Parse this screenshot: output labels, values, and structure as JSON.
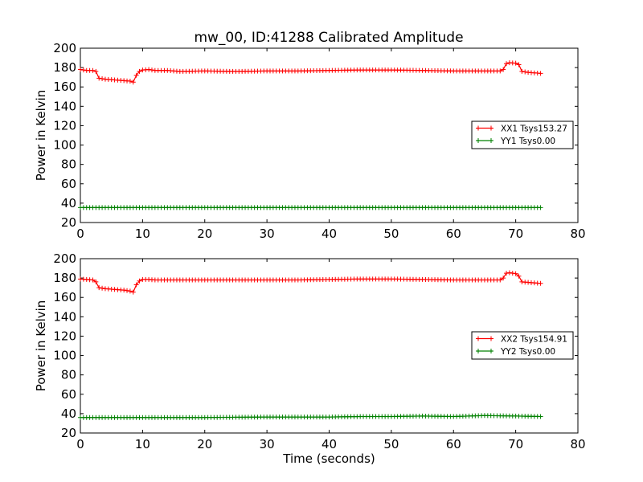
{
  "figure": {
    "title": "mw_00, ID:41288 Calibrated Amplitude"
  },
  "chart_data": [
    {
      "type": "line",
      "title": "mw_00, ID:41288 Calibrated Amplitude",
      "xlabel": "",
      "ylabel": "Power in Kelvin",
      "xlim": [
        0,
        80
      ],
      "ylim": [
        20,
        200
      ],
      "xticks": [
        0,
        10,
        20,
        30,
        40,
        50,
        60,
        70,
        80
      ],
      "yticks": [
        20,
        40,
        60,
        80,
        100,
        120,
        140,
        160,
        180,
        200
      ],
      "legend_position": "right",
      "grid": false,
      "series": [
        {
          "name": "XX1 Tsys153.27",
          "color": "#ff0000",
          "marker": "plus",
          "points": [
            [
              0,
              178
            ],
            [
              1,
              177
            ],
            [
              2,
              177
            ],
            [
              2.5,
              176
            ],
            [
              3,
              169
            ],
            [
              4,
              168
            ],
            [
              5,
              167.5
            ],
            [
              6,
              167
            ],
            [
              7,
              166.5
            ],
            [
              8,
              166
            ],
            [
              8.5,
              165
            ],
            [
              9,
              172
            ],
            [
              9.5,
              176
            ],
            [
              10,
              177.5
            ],
            [
              11,
              178
            ],
            [
              12,
              177
            ],
            [
              14,
              177
            ],
            [
              16,
              176
            ],
            [
              20,
              176.5
            ],
            [
              25,
              176
            ],
            [
              30,
              176.5
            ],
            [
              35,
              176.5
            ],
            [
              40,
              177
            ],
            [
              45,
              177.5
            ],
            [
              50,
              177.5
            ],
            [
              55,
              177
            ],
            [
              60,
              176.5
            ],
            [
              65,
              176.5
            ],
            [
              67.5,
              176.5
            ],
            [
              68,
              178
            ],
            [
              68.5,
              184
            ],
            [
              69,
              185
            ],
            [
              70,
              184.5
            ],
            [
              70.5,
              183
            ],
            [
              71,
              176
            ],
            [
              72,
              175
            ],
            [
              73,
              174.5
            ],
            [
              74,
              174
            ]
          ]
        },
        {
          "name": "YY1 Tsys0.00",
          "color": "#008000",
          "marker": "plus",
          "points": [
            [
              0,
              35.5
            ],
            [
              10,
              35.5
            ],
            [
              20,
              35.5
            ],
            [
              30,
              35.5
            ],
            [
              40,
              35.5
            ],
            [
              50,
              35.5
            ],
            [
              60,
              35.5
            ],
            [
              70,
              35.5
            ],
            [
              74,
              35.5
            ]
          ]
        }
      ]
    },
    {
      "type": "line",
      "title": "",
      "xlabel": "Time (seconds)",
      "ylabel": "Power in Kelvin",
      "xlim": [
        0,
        80
      ],
      "ylim": [
        20,
        200
      ],
      "xticks": [
        0,
        10,
        20,
        30,
        40,
        50,
        60,
        70,
        80
      ],
      "yticks": [
        20,
        40,
        60,
        80,
        100,
        120,
        140,
        160,
        180,
        200
      ],
      "legend_position": "right",
      "grid": false,
      "series": [
        {
          "name": "XX2 Tsys154.91",
          "color": "#ff0000",
          "marker": "plus",
          "points": [
            [
              0,
              179
            ],
            [
              1,
              178.5
            ],
            [
              2,
              178
            ],
            [
              2.5,
              176
            ],
            [
              3,
              170
            ],
            [
              4,
              169
            ],
            [
              5,
              168.5
            ],
            [
              6,
              168
            ],
            [
              7,
              167.5
            ],
            [
              8,
              166.5
            ],
            [
              8.5,
              165.5
            ],
            [
              9,
              173
            ],
            [
              9.5,
              177
            ],
            [
              10,
              178.5
            ],
            [
              11,
              178.5
            ],
            [
              12,
              178
            ],
            [
              15,
              178
            ],
            [
              20,
              178
            ],
            [
              25,
              178
            ],
            [
              30,
              178
            ],
            [
              35,
              178
            ],
            [
              40,
              178.5
            ],
            [
              45,
              179
            ],
            [
              50,
              179
            ],
            [
              55,
              178.5
            ],
            [
              60,
              178
            ],
            [
              65,
              178
            ],
            [
              67.5,
              178
            ],
            [
              68,
              180
            ],
            [
              68.5,
              185
            ],
            [
              69,
              185.5
            ],
            [
              70,
              184.5
            ],
            [
              70.5,
              182
            ],
            [
              71,
              176
            ],
            [
              72,
              175.5
            ],
            [
              73,
              175
            ],
            [
              74,
              174.5
            ]
          ]
        },
        {
          "name": "YY2 Tsys0.00",
          "color": "#008000",
          "marker": "plus",
          "points": [
            [
              0,
              36
            ],
            [
              10,
              36
            ],
            [
              20,
              36
            ],
            [
              30,
              36.5
            ],
            [
              35,
              36.5
            ],
            [
              40,
              36.5
            ],
            [
              45,
              37
            ],
            [
              50,
              37
            ],
            [
              55,
              37.5
            ],
            [
              60,
              37
            ],
            [
              65,
              38
            ],
            [
              70,
              37.5
            ],
            [
              74,
              37
            ]
          ]
        }
      ]
    }
  ]
}
